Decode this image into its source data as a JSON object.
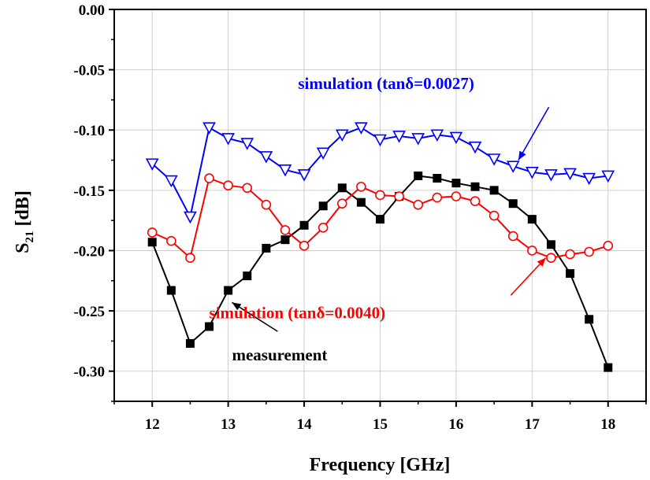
{
  "chart_data": {
    "type": "line",
    "xlabel": "Frequency [GHz]",
    "ylabel_main": "S",
    "ylabel_sub": "21",
    "ylabel_unit": " [dB]",
    "xlim": [
      11.5,
      18.5
    ],
    "ylim": [
      -0.325,
      0.0
    ],
    "x_ticks": [
      "12",
      "13",
      "14",
      "15",
      "16",
      "17",
      "18"
    ],
    "y_ticks": [
      "0.00",
      "-0.05",
      "-0.10",
      "-0.15",
      "-0.20",
      "-0.25",
      "-0.30"
    ],
    "grid": true,
    "x": [
      12,
      12.25,
      12.5,
      12.75,
      13,
      13.25,
      13.5,
      13.75,
      14,
      14.25,
      14.5,
      14.75,
      15,
      15.25,
      15.5,
      15.75,
      16,
      16.25,
      16.5,
      16.75,
      17,
      17.25,
      17.5,
      17.75,
      18
    ],
    "series": [
      {
        "name": "measurement",
        "color": "#000000",
        "marker": "square-filled",
        "values": [
          -0.193,
          -0.233,
          -0.277,
          -0.263,
          -0.233,
          -0.221,
          -0.198,
          -0.191,
          -0.179,
          -0.163,
          -0.148,
          -0.16,
          -0.174,
          -0.155,
          -0.138,
          -0.14,
          -0.144,
          -0.147,
          -0.15,
          -0.161,
          -0.174,
          -0.195,
          -0.219,
          -0.257,
          -0.297
        ]
      },
      {
        "name": "simulation (tanδ=0.0040)",
        "color": "#ff0000",
        "marker": "circle-open",
        "values": [
          -0.185,
          -0.192,
          -0.206,
          -0.14,
          -0.146,
          -0.148,
          -0.162,
          -0.183,
          -0.196,
          -0.181,
          -0.161,
          -0.147,
          -0.154,
          -0.155,
          -0.162,
          -0.156,
          -0.155,
          -0.159,
          -0.171,
          -0.188,
          -0.2,
          -0.206,
          -0.203,
          -0.201,
          -0.196
        ]
      },
      {
        "name": "simulation (tanδ=0.0027)",
        "color": "#0000ff",
        "marker": "triangle-down-open",
        "values": [
          -0.128,
          -0.142,
          -0.172,
          -0.098,
          -0.107,
          -0.111,
          -0.122,
          -0.133,
          -0.137,
          -0.119,
          -0.104,
          -0.098,
          -0.108,
          -0.105,
          -0.107,
          -0.104,
          -0.106,
          -0.114,
          -0.124,
          -0.13,
          -0.135,
          -0.137,
          -0.136,
          -0.14,
          -0.138
        ]
      }
    ],
    "annotations": [
      {
        "label": "measurement",
        "color": "#000000",
        "text_pos": [
          13.05,
          -0.291
        ],
        "arrow_from": [
          13.65,
          -0.267
        ],
        "arrow_to": [
          13.05,
          -0.243
        ]
      },
      {
        "label": "simulation (tanδ=0.0040)",
        "color": "#ff0000",
        "text_pos": [
          12.75,
          -0.256
        ],
        "arrow_from": [
          16.72,
          -0.237
        ],
        "arrow_to": [
          17.18,
          -0.206
        ]
      },
      {
        "label": "simulation (tanδ=0.0027)",
        "color": "#0000ff",
        "text_pos": [
          13.92,
          -0.066
        ],
        "arrow_from": [
          17.22,
          -0.081
        ],
        "arrow_to": [
          16.82,
          -0.125
        ]
      }
    ]
  }
}
